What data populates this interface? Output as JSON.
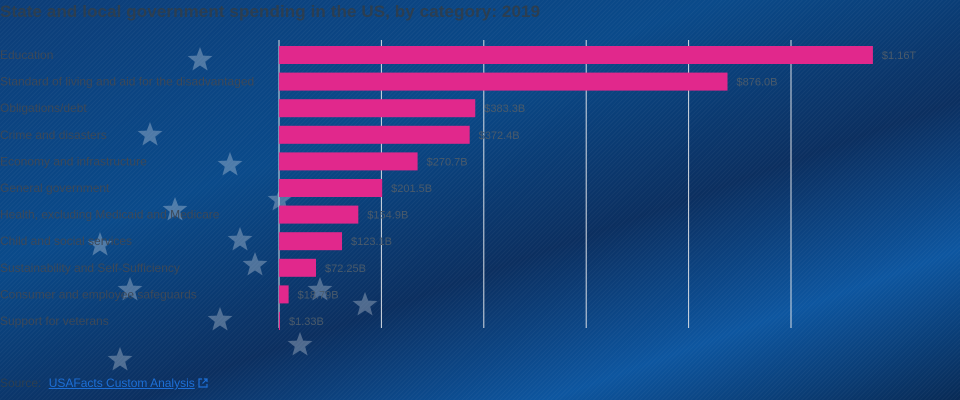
{
  "title": "State and local government spending in the US, by category: 2019",
  "source": {
    "label": "Source:",
    "link_text": "USAFacts Custom Analysis"
  },
  "colors": {
    "bar": "#e1288c",
    "background": "#0b3a72",
    "gridline": "#d8dde4"
  },
  "chart_data": {
    "type": "bar",
    "orientation": "horizontal",
    "title": "State and local government spending in the US, by category: 2019",
    "categories": [
      "Education",
      "Standard of living and aid for the disadvantaged",
      "Obligations/debt",
      "Crime and disasters",
      "Economy and infrastructure",
      "General government",
      "Health, excluding Medicaid and Medicare",
      "Child and social services",
      "Sustainability and Self-Sufficiency",
      "Consumer and employee safeguards",
      "Support for veterans"
    ],
    "values": [
      1160,
      876.0,
      383.3,
      372.4,
      270.7,
      201.5,
      154.9,
      123.1,
      72.25,
      18.79,
      1.33
    ],
    "value_labels": [
      "$1.16T",
      "$876.0B",
      "$383.3B",
      "$372.4B",
      "$270.7B",
      "$201.5B",
      "$154.9B",
      "$123.1B",
      "$72.25B",
      "$18.79B",
      "$1.33B"
    ],
    "xlim": [
      0,
      1250
    ],
    "gridlines_at": [
      0,
      200,
      400,
      600,
      800,
      1000
    ],
    "grid": true,
    "legend": "none"
  }
}
